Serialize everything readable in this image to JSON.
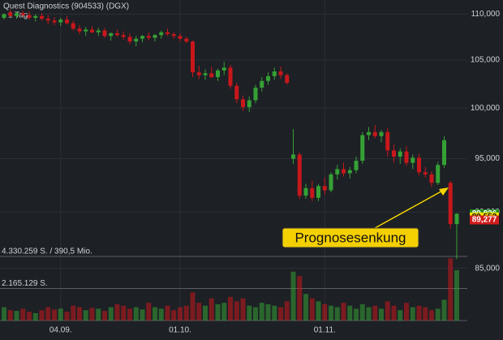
{
  "chart_data": {
    "type": "candlestick",
    "title": "Quest Diagnostics (904533) (DGX)",
    "subtitle": "1 Tag",
    "categories": [
      null,
      null,
      null,
      null,
      null,
      null,
      null,
      null,
      null,
      "04.09.",
      null,
      null,
      null,
      null,
      null,
      null,
      null,
      null,
      null,
      null,
      null,
      null,
      null,
      null,
      null,
      null,
      null,
      null,
      "01.10.",
      null,
      null,
      null,
      null,
      null,
      null,
      null,
      null,
      null,
      null,
      null,
      null,
      null,
      null,
      null,
      null,
      null,
      null,
      null,
      null,
      null,
      null,
      "01.11.",
      null,
      null,
      null,
      null,
      null,
      null,
      null,
      null,
      null,
      null,
      null,
      null,
      null,
      null,
      null,
      null,
      null,
      null,
      null,
      null,
      null
    ],
    "open": [
      109600,
      110200,
      109800,
      110100,
      109900,
      109600,
      109800,
      109500,
      109300,
      109100,
      109400,
      109000,
      108400,
      108100,
      108300,
      108000,
      108200,
      107600,
      107900,
      107700,
      107500,
      107000,
      107300,
      107600,
      107400,
      107700,
      108000,
      107800,
      107600,
      107300,
      107000,
      103700,
      103400,
      103600,
      103200,
      103900,
      104200,
      102300,
      100900,
      100100,
      100800,
      102100,
      102800,
      103300,
      103800,
      103400,
      95000,
      95400,
      91500,
      92200,
      91300,
      92400,
      92000,
      93500,
      94000,
      93600,
      93900,
      94800,
      97300,
      97600,
      97200,
      97600,
      95800,
      95200,
      95700,
      94600,
      95100,
      93700,
      93500,
      92700,
      94400,
      92700,
      88900
    ],
    "high": [
      110100,
      110500,
      110300,
      110400,
      110300,
      110000,
      110100,
      109900,
      109700,
      109600,
      109800,
      109300,
      108800,
      108600,
      108700,
      108500,
      108500,
      108000,
      108300,
      108100,
      107900,
      107600,
      107700,
      108000,
      107800,
      108200,
      108400,
      108000,
      107900,
      107500,
      107100,
      104400,
      104000,
      104300,
      104100,
      104800,
      104500,
      102600,
      101300,
      101200,
      102400,
      103200,
      103700,
      104200,
      104300,
      103600,
      97900,
      95600,
      92600,
      92900,
      92600,
      93200,
      93700,
      94400,
      94600,
      94200,
      95200,
      97600,
      98100,
      98300,
      97800,
      98000,
      96400,
      96000,
      96200,
      95400,
      95500,
      94200,
      93800,
      94700,
      97200,
      92900,
      89900
    ],
    "low": [
      109400,
      109700,
      109500,
      109700,
      109400,
      109200,
      109300,
      108900,
      108800,
      108700,
      108900,
      108200,
      107800,
      107600,
      107900,
      107600,
      107400,
      107100,
      107500,
      107200,
      106700,
      106500,
      106900,
      107100,
      107000,
      107300,
      107600,
      107300,
      107000,
      106800,
      103200,
      103000,
      102900,
      103100,
      102800,
      103400,
      102000,
      100500,
      99700,
      99600,
      100500,
      101700,
      102400,
      102900,
      103000,
      102400,
      94500,
      91200,
      91200,
      91000,
      91000,
      91600,
      91800,
      93000,
      93300,
      93100,
      93600,
      94500,
      96800,
      97000,
      96600,
      95200,
      94600,
      94500,
      94300,
      94000,
      93400,
      93200,
      92300,
      92500,
      94100,
      88500,
      85800
    ],
    "close": [
      110000,
      109800,
      110100,
      109900,
      109600,
      109800,
      109500,
      109300,
      109100,
      109400,
      109000,
      108400,
      108100,
      108300,
      108000,
      108200,
      107600,
      107900,
      107700,
      107500,
      107000,
      107300,
      107600,
      107400,
      107700,
      108000,
      107800,
      107600,
      107300,
      107000,
      103700,
      103400,
      103600,
      103200,
      103900,
      104200,
      102300,
      100900,
      100100,
      100800,
      102100,
      102800,
      103300,
      103800,
      103400,
      102600,
      95400,
      91500,
      92200,
      91300,
      92400,
      92000,
      93500,
      94000,
      93600,
      93900,
      94800,
      97300,
      97600,
      97200,
      97600,
      95800,
      95200,
      95700,
      94600,
      95100,
      93700,
      93500,
      92700,
      94400,
      96800,
      88900,
      89826
    ],
    "volumes": [
      900000,
      700000,
      650000,
      800000,
      600000,
      500000,
      700000,
      900000,
      750000,
      800000,
      600000,
      1000000,
      900000,
      700000,
      850000,
      800000,
      650000,
      900000,
      1100000,
      1000000,
      800000,
      900000,
      750000,
      1200000,
      900000,
      800000,
      1000000,
      700000,
      900000,
      1000000,
      1900000,
      1200000,
      1000000,
      1500000,
      1100000,
      1200000,
      1600000,
      1300000,
      1500000,
      1000000,
      900000,
      1200000,
      1100000,
      1000000,
      900000,
      1300000,
      3300000,
      3000000,
      1800000,
      1500000,
      1300000,
      1100000,
      1000000,
      900000,
      1200000,
      1000000,
      800000,
      1100000,
      900000,
      1000000,
      800000,
      1300000,
      1000000,
      700000,
      1200000,
      900000,
      1000000,
      900000,
      700000,
      800000,
      1400000,
      4200000,
      3400000
    ],
    "ylim": [
      84000,
      111600
    ],
    "log_scale": true,
    "yticks": [
      {
        "value": 85000,
        "label": "85,000"
      },
      {
        "value": 90000,
        "label": "90,000"
      },
      {
        "value": 95000,
        "label": "95,000"
      },
      {
        "value": 100000,
        "label": "100,000"
      },
      {
        "value": 105000,
        "label": "105,000"
      },
      {
        "value": 110000,
        "label": "110,000"
      }
    ],
    "volume_ylim": [
      0,
      4330259
    ],
    "volume_ticks": [
      {
        "value": 4330259,
        "label": "4.330.259 S. / 390,5 Mio."
      },
      {
        "value": 2165129,
        "label": "2.165.129 S."
      }
    ],
    "up_color": "#35a135",
    "down_color": "#c8171b",
    "price_tags": [
      {
        "value": 89826,
        "label": "89,826",
        "color": "#1f8a1f"
      },
      {
        "value": 89552,
        "label": "89,552",
        "color": "#f2e600"
      },
      {
        "value": 89277,
        "label": "89,277",
        "color": "#d21c1c"
      }
    ],
    "annotation": "Prognosesenkung",
    "grid": true
  }
}
